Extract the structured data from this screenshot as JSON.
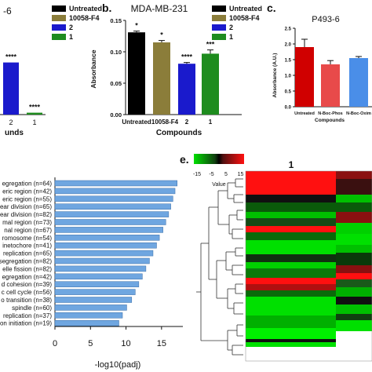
{
  "chart_data": [
    {
      "panel": "a",
      "type": "bar",
      "title": "-6",
      "xlabel": "unds",
      "categories": [
        "2",
        "1"
      ],
      "values": [
        0.083,
        0.003
      ],
      "sig": [
        "****",
        "****"
      ],
      "colors": [
        "#1a1acc",
        "#1e8c1e"
      ],
      "ylim": [
        0,
        0.15
      ]
    },
    {
      "panel": "b",
      "type": "bar",
      "panel_label": "b.",
      "title": "MDA-MB-231",
      "ylabel": "Absorbance",
      "xlabel": "Compounds",
      "categories": [
        "Untreated",
        "10058-F4",
        "2",
        "1"
      ],
      "values": [
        0.131,
        0.115,
        0.081,
        0.097
      ],
      "errors": [
        0.002,
        0.003,
        0.002,
        0.006
      ],
      "sig": [
        "*",
        "*",
        "****",
        "***"
      ],
      "colors": [
        "#000000",
        "#8b7d3a",
        "#1a1acc",
        "#1e8c1e"
      ],
      "ylim": [
        0,
        0.15
      ],
      "yticks": [
        "0.00",
        "0.05",
        "0.10",
        "0.15"
      ],
      "legend": [
        {
          "name": "Untreated",
          "color": "#000000"
        },
        {
          "name": "10058-F4",
          "color": "#8b7d3a"
        },
        {
          "name": "2",
          "color": "#1a1acc"
        },
        {
          "name": "1",
          "color": "#1e8c1e"
        }
      ]
    },
    {
      "panel": "c",
      "type": "bar",
      "panel_label": "c.",
      "title": "P493-6",
      "ylabel": "Absorbance (A.U.)",
      "xlabel": "Compounds",
      "categories": [
        "Untreated",
        "N-Boc-Phos",
        "N-Boc-Oxim"
      ],
      "values": [
        1.9,
        1.35,
        1.55
      ],
      "errors": [
        0.25,
        0.12,
        0.05
      ],
      "colors": [
        "#d00000",
        "#e84a4a",
        "#4a8ee8"
      ],
      "ylim": [
        0,
        2.5
      ],
      "yticks": [
        "0.0",
        "0.5",
        "1.0",
        "1.5",
        "2.0",
        "2.5"
      ]
    },
    {
      "panel": "d",
      "type": "bar",
      "orientation": "horizontal",
      "xlabel": "-log10(padj)",
      "xlim": [
        0,
        18
      ],
      "xticks": [
        "0",
        "5",
        "10",
        "15"
      ],
      "categories": [
        "egregation (n=64)",
        "eric region (n=42)",
        "eric region (n=55)",
        "ear division (n=65)",
        "ear division (n=82)",
        "mal region (n=73)",
        "nal region (n=67)",
        "romosome (n=54)",
        "inetochore (n=41)",
        "replication (n=65)",
        "segregation (n=82)",
        "elle fission (n=82)",
        "egregation (n=42)",
        "d cohesion (n=39)",
        "c cell cycle (n=56)",
        "o transition (n=38)",
        "spindle (n=60)",
        "replication (n=37)",
        "on initiation (n=19)"
      ],
      "values": [
        17.2,
        16.9,
        16.6,
        16.3,
        16.0,
        15.6,
        15.2,
        14.7,
        14.3,
        13.8,
        13.3,
        12.8,
        12.3,
        11.8,
        11.3,
        10.8,
        10.1,
        9.5,
        9.0
      ],
      "bar_color": "#6fa6e0"
    },
    {
      "panel": "e",
      "type": "heatmap",
      "panel_label": "e.",
      "column_label": "1",
      "legend_title": "Value",
      "scale_ticks": [
        "-15",
        "-5",
        "5",
        "15"
      ],
      "scale_range": [
        -15,
        15
      ]
    }
  ]
}
